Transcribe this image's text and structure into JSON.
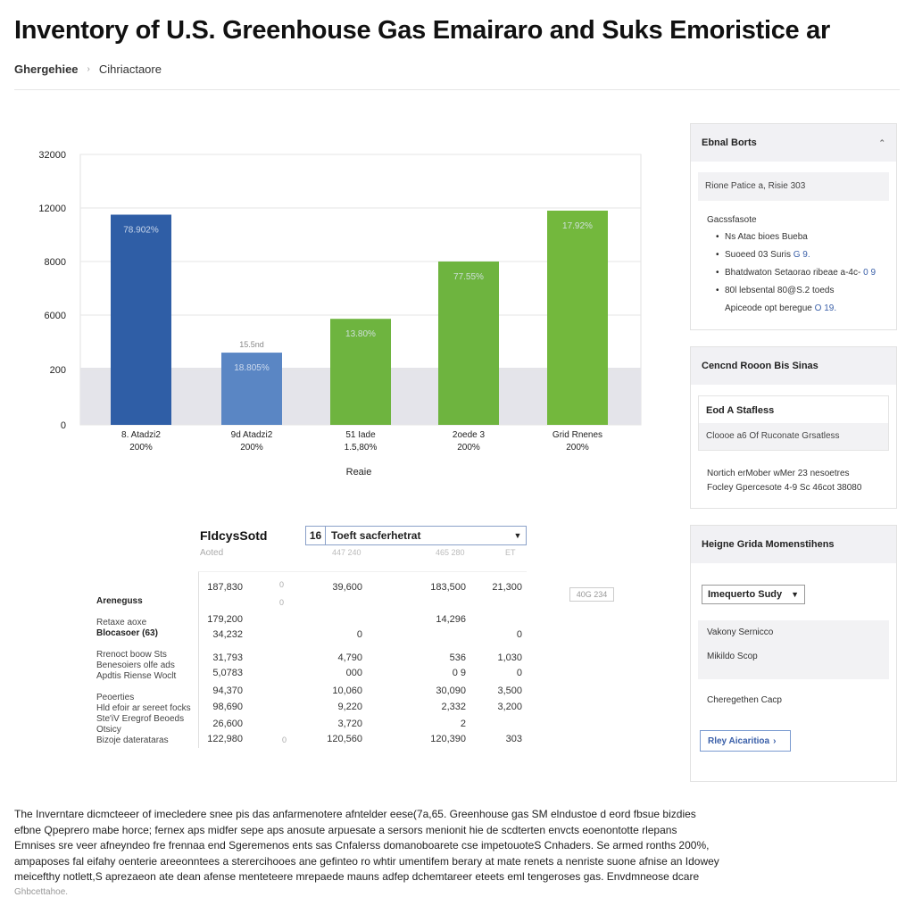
{
  "header": {
    "title": "Inventory of U.S. Greenhouse Gas Emairaro and Suks Emoristice ar",
    "breadcrumb": [
      "Ghergehiee",
      "Cihriactaore"
    ]
  },
  "chart_data": {
    "type": "bar",
    "categories": [
      "8 Atadzi2\n200%",
      "9d Atadzi2\n200%",
      "51 Iade\n1.5,80%",
      "2oede 3\n200%",
      "Grid Rnenes\n200%"
    ],
    "category_lines": [
      [
        "8. Atadzi2",
        "200%"
      ],
      [
        "9d Atadzi2",
        "200%"
      ],
      [
        "51 Iade",
        "1.5,80%"
      ],
      [
        "2oede 3",
        "200%"
      ],
      [
        "Grid Rnenes",
        "200%"
      ]
    ],
    "values": [
      11500,
      2000,
      5600,
      8000,
      11800
    ],
    "data_labels": [
      "78.902%",
      "18.805%",
      "13.80%",
      "77.55%",
      "17.92%"
    ],
    "top_label": "15.5nd",
    "colors": [
      "#2f5ea6",
      "#5a86c4",
      "#6eb43f",
      "#6eb43f",
      "#73b83d"
    ],
    "yticks": [
      0,
      200,
      6000,
      8000,
      12000,
      32000
    ],
    "ylabel": "",
    "xlabel": "Reaie",
    "grid": true
  },
  "table": {
    "title": "FldcysSotd",
    "subtitle": "Aoted",
    "select_number": "16",
    "select_label": "Toeft sacferhetrat",
    "col_heads": [
      "447 240",
      "465 280",
      "ET"
    ],
    "side_chip": "40G 234",
    "row_labels": [
      {
        "text": "Areneguss",
        "bold": true
      },
      {
        "text": "Retaxe aoxe",
        "bold": false
      },
      {
        "text": "Blocasoer (63)",
        "bold": true
      },
      {
        "text": "Rrenoct boow Sts",
        "bold": false
      },
      {
        "text": "Benesoiers olfe ads",
        "bold": false
      },
      {
        "text": "Apdtis Riense Woclt",
        "bold": false
      },
      {
        "text": "Peoerties",
        "bold": false
      },
      {
        "text": "Hld efoir ar sereet focks",
        "bold": false
      },
      {
        "text": "Ste'iV Eregrof Beoeds",
        "bold": false
      },
      {
        "text": "Otsicy",
        "bold": false
      },
      {
        "text": "Bizoje daterataras",
        "bold": false
      }
    ],
    "rows": [
      [
        "187,830",
        "39,600",
        "183,500",
        "21,300"
      ],
      [
        "179,200",
        "",
        "14,296",
        ""
      ],
      [
        "34,232",
        "0",
        "",
        "0"
      ],
      [
        "31,793",
        "4,790",
        "536",
        "1,030"
      ],
      [
        "5,0783",
        "000",
        "0 9",
        "0"
      ],
      [
        "94,370",
        "10,060",
        "30,090",
        "3,500"
      ],
      [
        "98,690",
        "9,220",
        "2,332",
        "3,200"
      ],
      [
        "26,600",
        "3,720",
        "2",
        ""
      ],
      [
        "122,980",
        "120,560",
        "120,390",
        "303"
      ]
    ],
    "marks": [
      "0",
      "0",
      "0"
    ]
  },
  "panels": {
    "p1": {
      "title": "Ebnal Borts",
      "band": "Rione Patice a, Risie 303",
      "sub": "Gacssfasote",
      "items": [
        {
          "text": "Ns Atac bioes Bueba",
          "link": ""
        },
        {
          "text": "Suoeed 03 Suris",
          "link": "G 9."
        },
        {
          "text": "Bhatdwaton Setaorao ribeae a-4c-",
          "link": "0 9"
        },
        {
          "text": "80l lebsental 80@S.2 toeds",
          "link": ""
        }
      ],
      "note": "Apiceode opt beregue",
      "note_link": "O 19."
    },
    "p2": {
      "title": "Cencnd Rooon Bis Sinas",
      "inner_title": "Eod A Stafless",
      "inner_band": "Cloooe a6 Of Ruconate Grsatless",
      "lines": [
        "Nortich erMober wMer 23 nesoetres",
        "Focley Gpercesote 4-9 Sc 46cot 38080"
      ]
    },
    "p3": {
      "title": "Heigne Grida Momenstihens",
      "dropdown": "Imequerto Sudy",
      "options": [
        "Vakony Sernicco",
        "Mikildo Scop"
      ],
      "option3": "Cheregethen Cacp",
      "link_button": "Rley Aicaritioa"
    }
  },
  "footer": {
    "lines": [
      "The Inverntare dicmcteeer of imecledere snee pis das anfarmenotere afntelder eese(7a,65. Greenhouse gas SM elndustoe d eord fbsue bizdies",
      "efbne Qpeprero mabe horce; fernex aps midfer sepe aps anosute arpuesate a sersors menionit hie de scdterten envcts eoenontotte rlepans",
      "Emnises sre veer afneyndeo fre frennaa end Sgeremenos ents sas Cnfalerss domanoboarete cse impetouoteS Cnhaders. Se armed ronths 200%,",
      "ampaposes fal eifahy oenterie areeonntees a sterercihooes ane gefinteo ro whtir umentifem berary at mate renets a nenriste suone afnise an Idowey",
      "meicefthy notlett,S aprezaeon ate dean afense menteteere mrepaede mauns adfep dchemtareer eteets eml tengeroses gas. Envdmneose dcare"
    ],
    "caption": "Ghbcettahoe."
  }
}
